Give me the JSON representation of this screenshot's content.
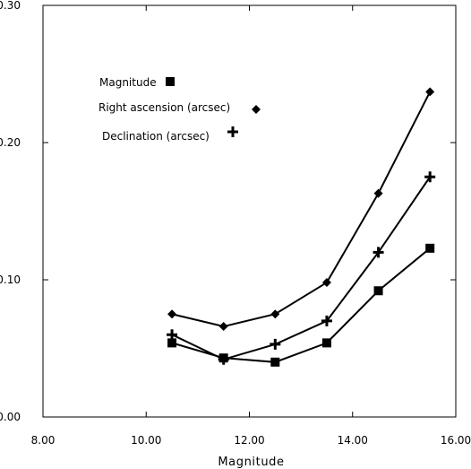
{
  "chart_data": {
    "type": "line",
    "title": "",
    "xlabel": "Magnitude",
    "ylabel": "",
    "xlim": [
      8,
      16
    ],
    "ylim": [
      0,
      0.3
    ],
    "x_ticks": [
      "8.00",
      "10.00",
      "12.00",
      "14.00",
      "16.00"
    ],
    "y_ticks": [
      "0.00",
      "0.10",
      "0.20",
      "0.30"
    ],
    "grid": false,
    "legend_position": "top-left",
    "x": [
      10.5,
      11.5,
      12.5,
      13.5,
      14.5,
      15.5
    ],
    "series": [
      {
        "name": "Magnitude",
        "marker": "square",
        "values": [
          0.054,
          0.043,
          0.04,
          0.054,
          0.092,
          0.123
        ]
      },
      {
        "name": "Right ascension (arcsec)",
        "marker": "diamond",
        "values": [
          0.075,
          0.066,
          0.075,
          0.098,
          0.163,
          0.237
        ]
      },
      {
        "name": "Declination (arcsec)",
        "marker": "plus",
        "values": [
          0.06,
          0.042,
          0.053,
          0.07,
          0.12,
          0.175
        ]
      }
    ],
    "colors": {
      "line": "#000000",
      "background": "#ffffff"
    }
  }
}
